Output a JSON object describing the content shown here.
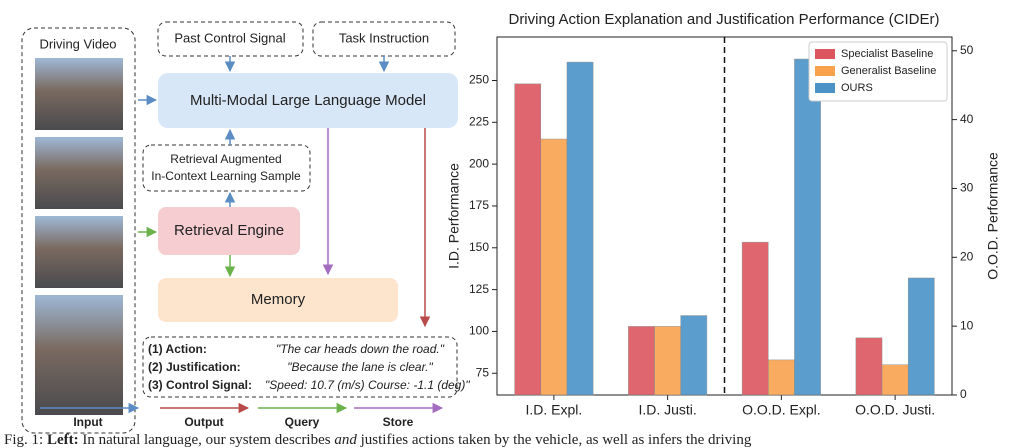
{
  "diagram": {
    "driving_video": "Driving Video",
    "past_control_signal": "Past Control Signal",
    "task_instruction": "Task Instruction",
    "mllm": "Multi-Modal Large Language Model",
    "retrieval_sample": [
      "Retrieval Augmented",
      "In-Context Learning Sample"
    ],
    "retrieval_engine": "Retrieval  Engine",
    "memory": "Memory",
    "output_lines": [
      {
        "label": "(1) Action:",
        "text": "\"The car heads down the road.\""
      },
      {
        "label": "(2) Justification:",
        "text": "\"Because the lane is clear.\""
      },
      {
        "label": "(3) Control Signal:",
        "text": "\"Speed:  10.7 (m/s) Course: -1.1 (deg)\""
      }
    ],
    "legend": [
      "Input",
      "Output",
      "Query",
      "Store"
    ]
  },
  "caption": [
    "Fig. 1:",
    "Left:",
    "In natural language, our system describes",
    "and",
    "justifies actions taken by the vehicle, as well as infers the driving"
  ],
  "chart_data": {
    "type": "bar",
    "title": "Driving Action Explanation and Justification Performance (CIDEr)",
    "categories": [
      "I.D. Expl.",
      "I.D. Justi.",
      "O.O.D. Expl.",
      "O.O.D. Justi."
    ],
    "category_axis": [
      "y",
      "y",
      "y2",
      "y2"
    ],
    "series": [
      {
        "name": "Specialist Baseline",
        "color": "#dc5660",
        "values": [
          248,
          103,
          22.2,
          8.3
        ]
      },
      {
        "name": "Generalist Baseline",
        "color": "#f9a24e",
        "values": [
          215,
          103,
          5.1,
          4.4
        ]
      },
      {
        "name": "OURS",
        "color": "#4a93c7",
        "values": [
          261,
          109.5,
          48.8,
          17
        ]
      }
    ],
    "ylabel": "I.D. Performance",
    "y2label": "O.O.D. Performance",
    "ylim": [
      62,
      276
    ],
    "yticks": [
      75,
      100,
      125,
      150,
      175,
      200,
      225,
      250
    ],
    "y2lim": [
      0,
      52
    ],
    "y2ticks": [
      0,
      10,
      20,
      30,
      40,
      50
    ],
    "legend": "upper right"
  }
}
